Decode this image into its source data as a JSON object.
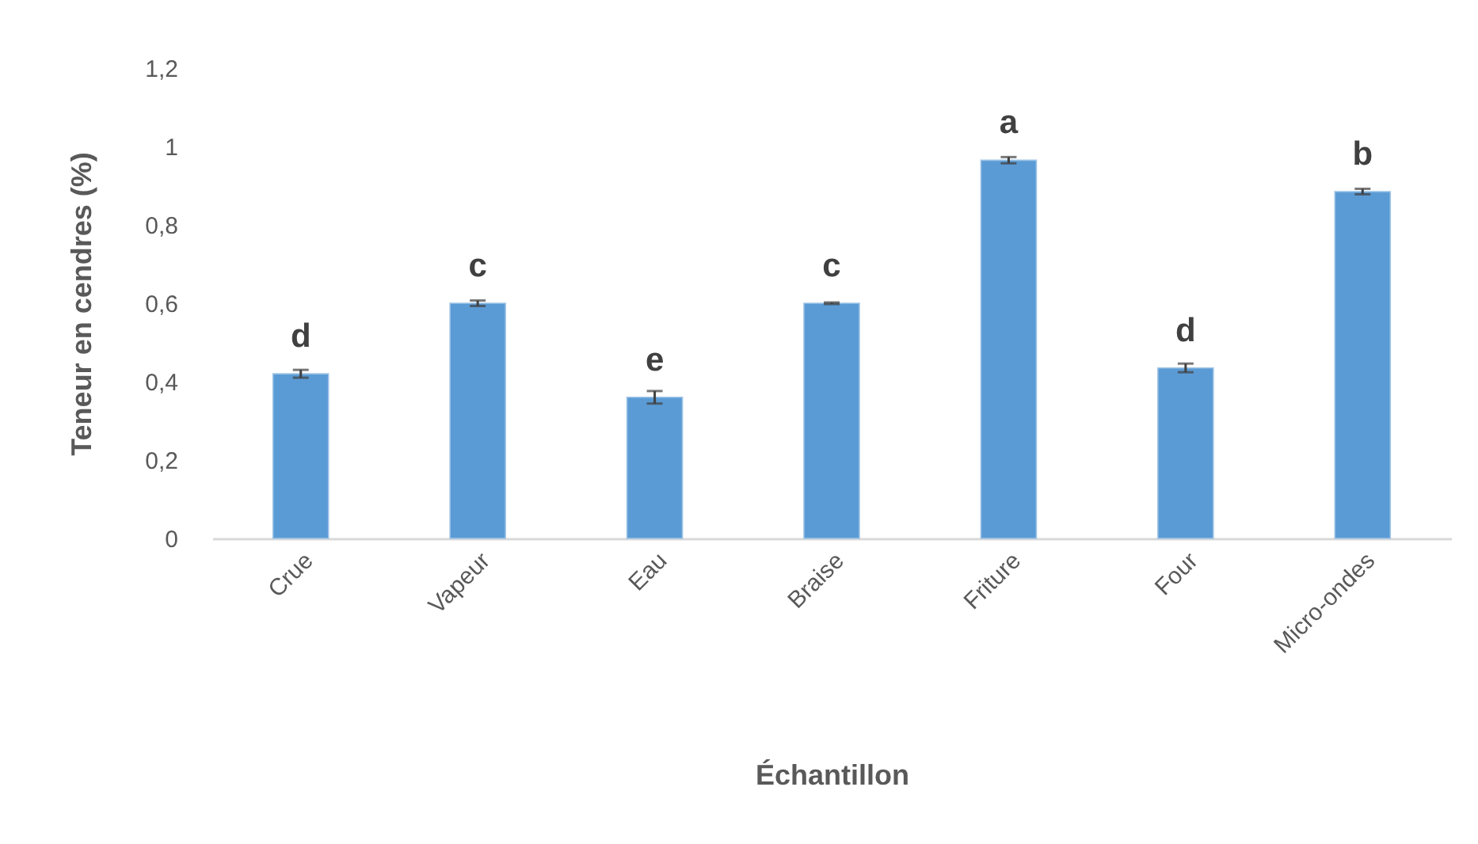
{
  "chart_data": {
    "type": "bar",
    "xlabel": "Échantillon",
    "ylabel": "Teneur en cendres (%)",
    "categories": [
      "Crue",
      "Vapeur",
      "Eau",
      "Braise",
      "Friture",
      "Four",
      "Micro-ondes"
    ],
    "values": [
      0.42,
      0.6,
      0.36,
      0.6,
      0.965,
      0.435,
      0.885
    ],
    "errors": [
      0.01,
      0.007,
      0.016,
      0.002,
      0.008,
      0.011,
      0.007
    ],
    "color": "#5b9bd5",
    "ylim": [
      0,
      1.2
    ],
    "yticks": [
      0,
      {
        "value": 0.2,
        "label": "0,2"
      },
      {
        "value": 0.4,
        "label": "0,4"
      },
      {
        "value": 0.6,
        "label": "0,6"
      },
      {
        "value": 0.8,
        "label": "0,8"
      },
      1,
      {
        "value": 1.2,
        "label": "1,2"
      }
    ],
    "annotations": [
      {
        "text": "d",
        "x": "Crue",
        "y": 0.42
      },
      {
        "text": "c",
        "x": "Vapeur",
        "y": 0.6
      },
      {
        "text": "e",
        "x": "Eau",
        "y": 0.36
      },
      {
        "text": "c",
        "x": "Braise",
        "y": 0.6
      },
      {
        "text": "a",
        "x": "Friture",
        "y": 0.965
      },
      {
        "text": "d",
        "x": "Four",
        "y": 0.435
      },
      {
        "text": "b",
        "x": "Micro-ondes",
        "y": 0.885
      }
    ]
  }
}
